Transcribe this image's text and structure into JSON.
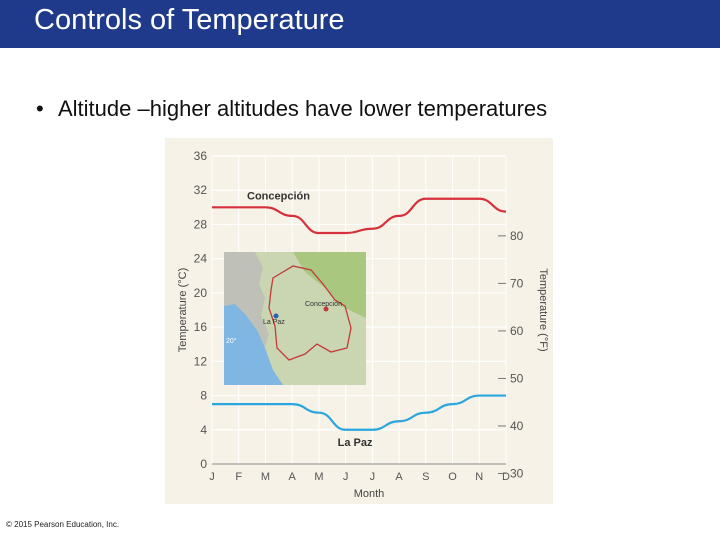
{
  "slide": {
    "title": "Controls of Temperature",
    "bullet": "Altitude –higher altitudes have lower temperatures",
    "copyright": "© 2015 Pearson Education, Inc."
  },
  "colors": {
    "title_bar": "#1f3a8a",
    "chart_background": "#f6f2e7",
    "concepcion_line": "#d6303c",
    "la_paz_line": "#2ba6de"
  },
  "map": {
    "labels": [
      "Concepción",
      "La Paz",
      "20°"
    ]
  },
  "chart_data": {
    "type": "line",
    "title": "",
    "categories": [
      "J",
      "F",
      "M",
      "A",
      "M",
      "J",
      "J",
      "A",
      "S",
      "O",
      "N",
      "D"
    ],
    "xlabel": "Month",
    "ylabel": "Temperature (°C)",
    "ylabel_right": "Temperature (°F)",
    "ylim": [
      0,
      36
    ],
    "yticks": [
      0,
      4,
      8,
      12,
      16,
      20,
      24,
      28,
      32,
      36
    ],
    "yticks_right": [
      30,
      40,
      50,
      60,
      70,
      80
    ],
    "grid": "horizontal",
    "series": [
      {
        "name": "Concepción",
        "values": [
          30,
          30,
          30,
          29,
          27,
          27,
          27.5,
          29,
          31,
          31,
          31,
          29.5
        ]
      },
      {
        "name": "La Paz",
        "values": [
          7,
          7,
          7,
          7,
          6,
          4,
          4,
          5,
          6,
          7,
          8,
          8
        ]
      }
    ]
  }
}
